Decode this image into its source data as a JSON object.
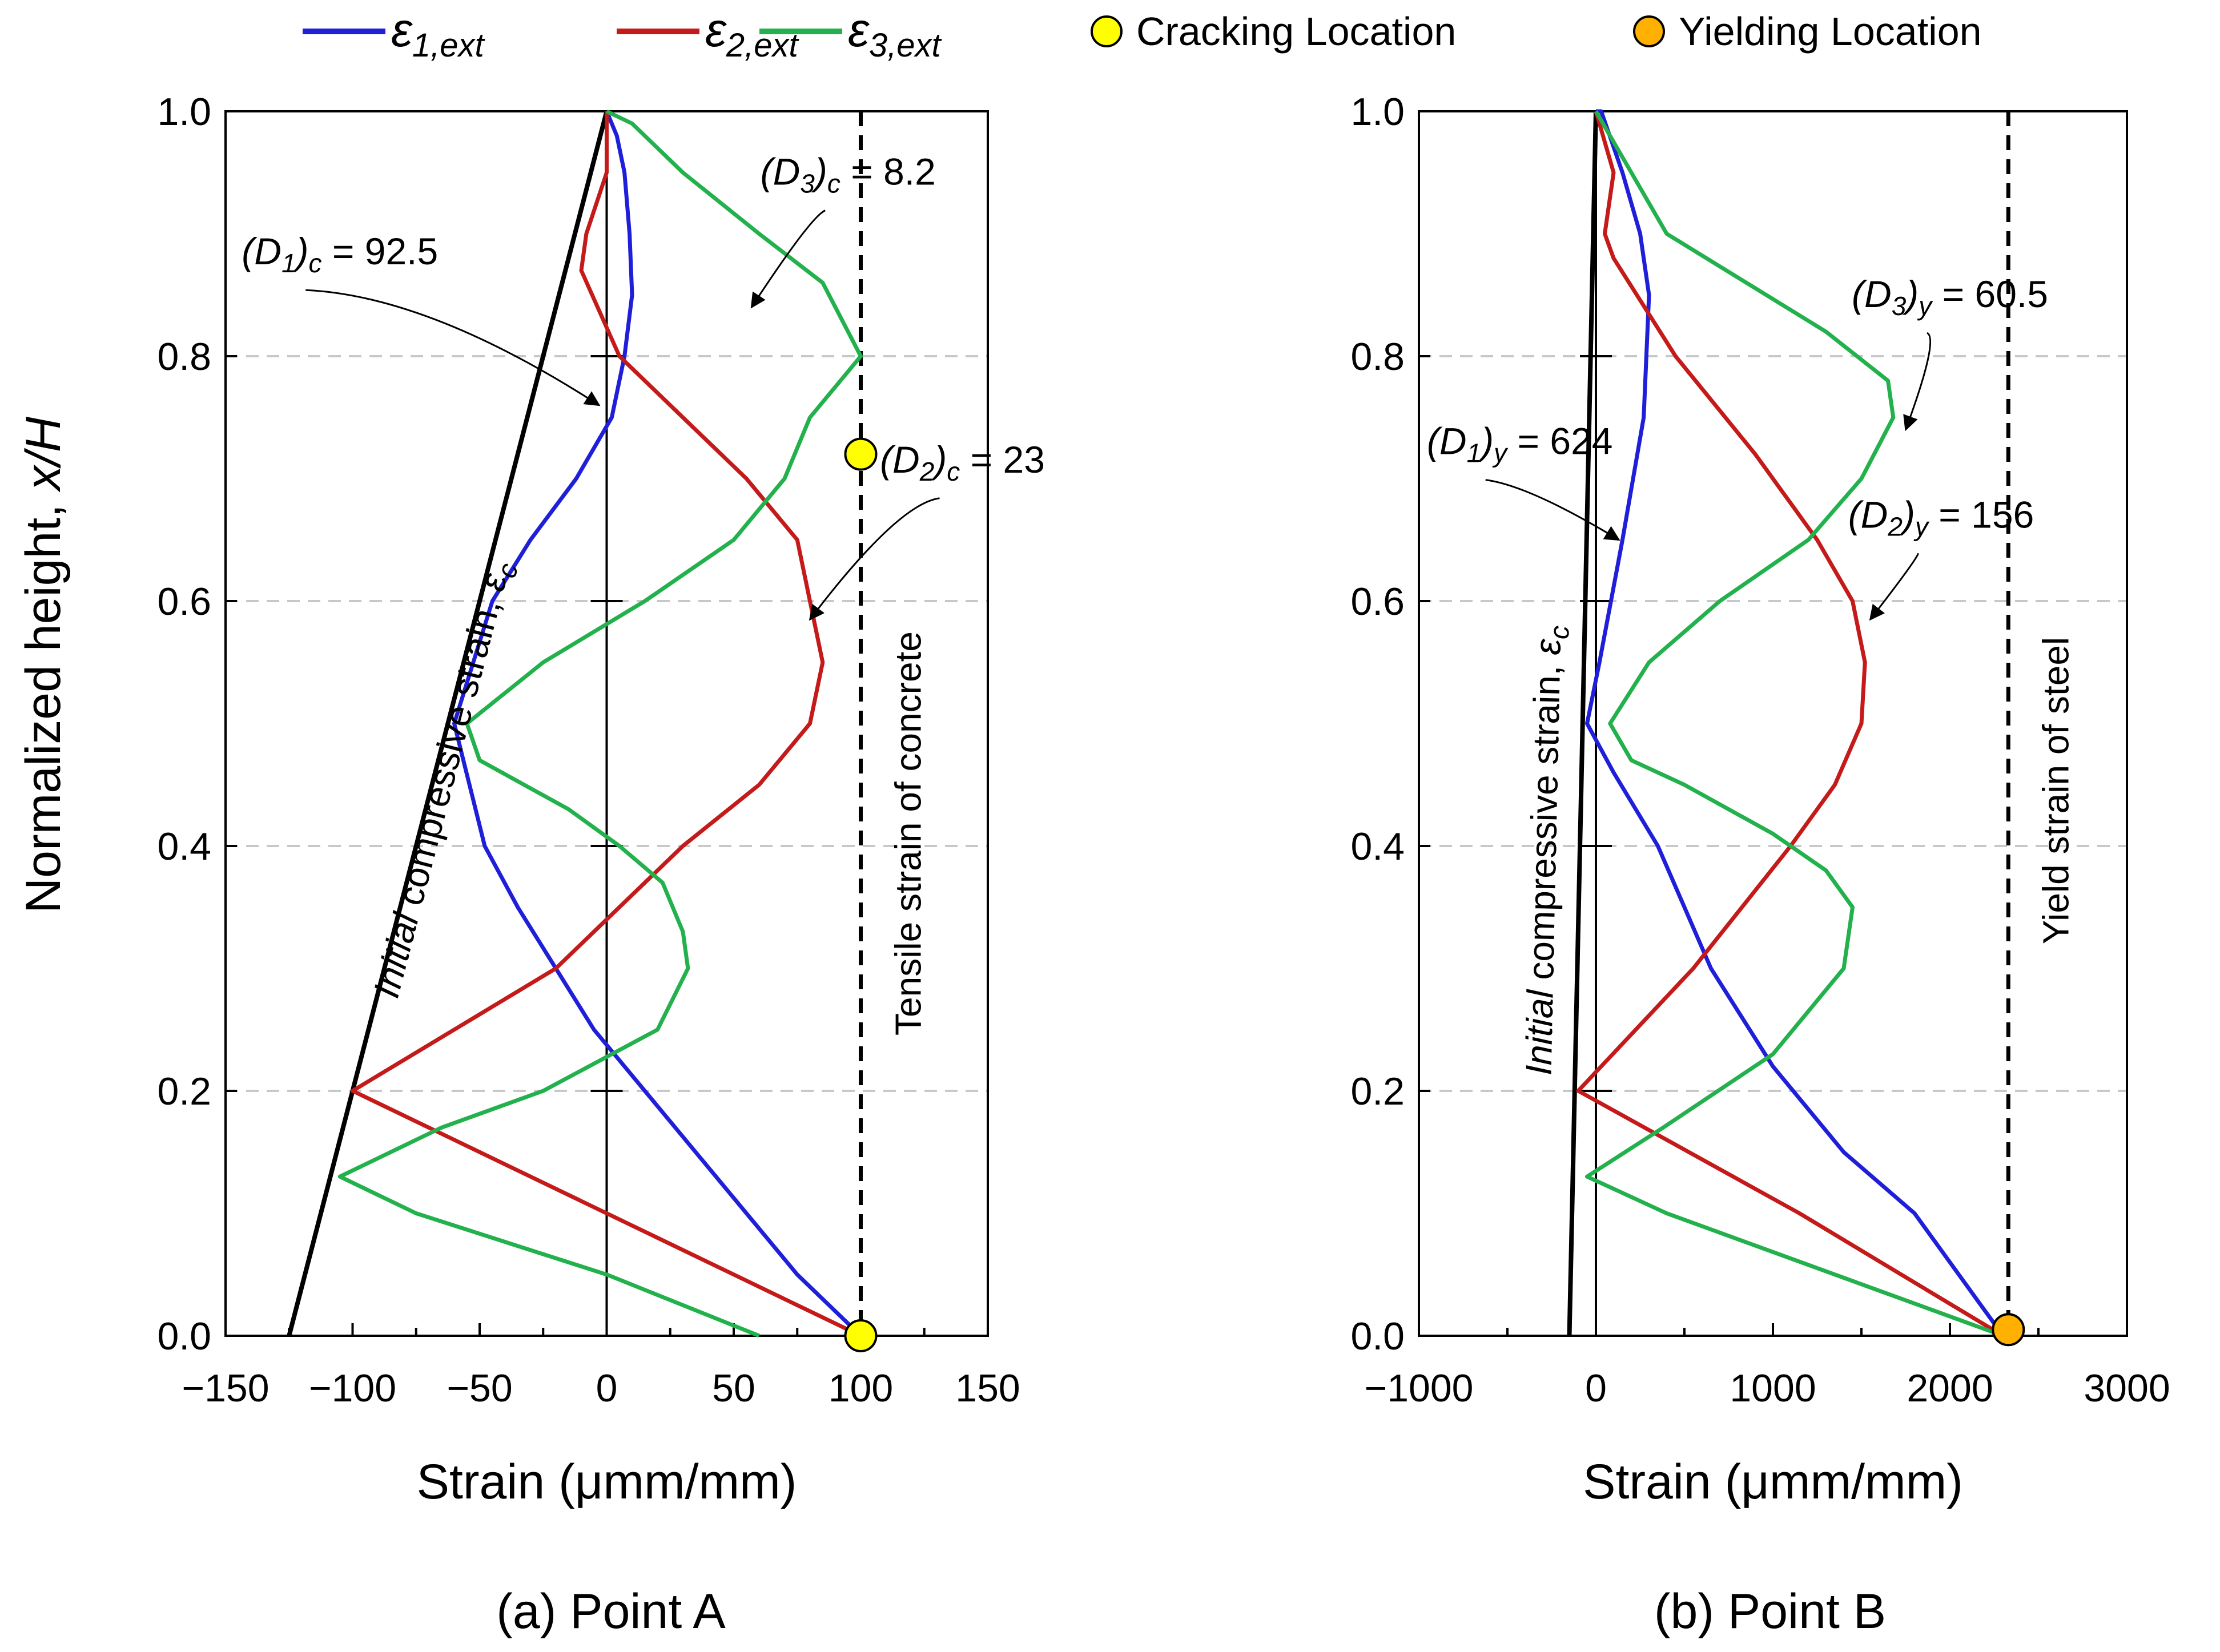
{
  "legend": {
    "items": [
      {
        "kind": "line",
        "base": "ε",
        "sub": "1,ext",
        "color": "#1f1fd9"
      },
      {
        "kind": "line",
        "base": "ε",
        "sub": "2,ext",
        "color": "#c41a1a"
      },
      {
        "kind": "line",
        "base": "ε",
        "sub": "3,ext",
        "color": "#22b14c"
      },
      {
        "kind": "marker",
        "label": "Cracking Location",
        "color": "#ffff00"
      },
      {
        "kind": "marker",
        "label": "Yielding Location",
        "color": "#ffb000"
      }
    ]
  },
  "y_axis_label": {
    "main": "Normalized height, ",
    "var": "x/H"
  },
  "colors": {
    "eps1": "#1f1fd9",
    "eps2": "#c41a1a",
    "eps3": "#22b14c",
    "initial": "#000000",
    "crack": "#ffff00",
    "yield": "#ffb000"
  },
  "chart_data": [
    {
      "type": "line",
      "caption": "(a) Point A",
      "xlabel": "Strain (μmm/mm)",
      "xlim": [
        -150,
        150
      ],
      "ylim": [
        0,
        1
      ],
      "xticks": [
        -150,
        -100,
        -50,
        0,
        50,
        100,
        150
      ],
      "xtick_labels": [
        "−150",
        "−100",
        "−50",
        "0",
        "50",
        "100",
        "150"
      ],
      "yticks": [
        0,
        0.2,
        0.4,
        0.6,
        0.8,
        1.0
      ],
      "ytick_labels": [
        "0.0",
        "0.2",
        "0.4",
        "0.6",
        "0.8",
        "1.0"
      ],
      "limit_line": {
        "x": 100,
        "label": "Tensile strain of concrete"
      },
      "initial_label": {
        "text": "Initial compressive strain, ",
        "sym": "ε",
        "sub": "c"
      },
      "series": [
        {
          "name": "initial",
          "x": [
            -125,
            0
          ],
          "y": [
            0,
            1.0
          ]
        },
        {
          "name": "eps1",
          "x": [
            100,
            75,
            55,
            35,
            15,
            -5,
            -20,
            -35,
            -48,
            -60,
            -45,
            -30,
            -12,
            2,
            7,
            10,
            9,
            7,
            4,
            0
          ],
          "y": [
            0,
            0.05,
            0.1,
            0.15,
            0.2,
            0.25,
            0.3,
            0.35,
            0.4,
            0.5,
            0.6,
            0.65,
            0.7,
            0.75,
            0.8,
            0.85,
            0.9,
            0.95,
            0.98,
            1.0
          ]
        },
        {
          "name": "eps2",
          "x": [
            100,
            0,
            -100,
            -20,
            30,
            60,
            80,
            85,
            80,
            75,
            55,
            30,
            5,
            -10,
            -8,
            0,
            0
          ],
          "y": [
            0,
            0.1,
            0.2,
            0.3,
            0.4,
            0.45,
            0.5,
            0.55,
            0.6,
            0.65,
            0.7,
            0.75,
            0.8,
            0.87,
            0.9,
            0.95,
            1.0
          ]
        },
        {
          "name": "eps3",
          "x": [
            60,
            0,
            -75,
            -105,
            -65,
            -25,
            20,
            32,
            30,
            22,
            5,
            -15,
            -50,
            -55,
            -25,
            15,
            50,
            70,
            80,
            100,
            85,
            60,
            30,
            10,
            0
          ],
          "y": [
            0,
            0.05,
            0.1,
            0.13,
            0.17,
            0.2,
            0.25,
            0.3,
            0.33,
            0.37,
            0.4,
            0.43,
            0.47,
            0.5,
            0.55,
            0.6,
            0.65,
            0.7,
            0.75,
            0.8,
            0.86,
            0.9,
            0.95,
            0.99,
            1.0
          ]
        }
      ],
      "markers": [
        {
          "x": 100,
          "y": 0.72,
          "kind": "crack"
        },
        {
          "x": 100,
          "y": 0.0,
          "kind": "crack"
        }
      ],
      "annotations": [
        {
          "label": "D",
          "sub": "1",
          "tail": "c",
          "value": " = 92.5",
          "anchor_x": -105,
          "anchor_y": 0.875,
          "arrow_x": -3,
          "arrow_y": 0.76
        },
        {
          "label": "D",
          "sub": "3",
          "tail": "c",
          "value": " = 8.2",
          "anchor_x": 95,
          "anchor_y": 0.94,
          "arrow_x": 57,
          "arrow_y": 0.84
        },
        {
          "label": "D",
          "sub": "2",
          "tail": "c",
          "value": " = 23",
          "anchor_x": 140,
          "anchor_y": 0.705,
          "arrow_x": 80,
          "arrow_y": 0.585
        }
      ]
    },
    {
      "type": "line",
      "caption": "(b) Point B",
      "xlabel": "Strain (μmm/mm)",
      "xlim": [
        -1000,
        3000
      ],
      "ylim": [
        0,
        1
      ],
      "xticks": [
        -1000,
        0,
        1000,
        2000,
        3000
      ],
      "xtick_labels": [
        "−1000",
        "0",
        "1000",
        "2000",
        "3000"
      ],
      "yticks": [
        0,
        0.2,
        0.4,
        0.6,
        0.8,
        1.0
      ],
      "ytick_labels": [
        "0.0",
        "0.2",
        "0.4",
        "0.6",
        "0.8",
        "1.0"
      ],
      "limit_line": {
        "x": 2330,
        "label": "Yield strain of steel"
      },
      "initial_label": {
        "text": "Initial compressive strain, ",
        "sym": "ε",
        "sub": "c"
      },
      "series": [
        {
          "name": "initial",
          "x": [
            -150,
            0
          ],
          "y": [
            0,
            1.0
          ]
        },
        {
          "name": "eps1",
          "x": [
            2300,
            1800,
            1400,
            1000,
            650,
            350,
            100,
            -50,
            20,
            150,
            270,
            300,
            250,
            150,
            30,
            0
          ],
          "y": [
            0,
            0.1,
            0.15,
            0.22,
            0.3,
            0.4,
            0.46,
            0.5,
            0.55,
            0.65,
            0.75,
            0.85,
            0.9,
            0.95,
            1.0,
            1.0
          ]
        },
        {
          "name": "eps2",
          "x": [
            2300,
            1150,
            -100,
            550,
            1100,
            1350,
            1500,
            1520,
            1450,
            1250,
            900,
            450,
            100,
            50,
            100,
            0
          ],
          "y": [
            0,
            0.1,
            0.2,
            0.3,
            0.4,
            0.45,
            0.5,
            0.55,
            0.6,
            0.65,
            0.72,
            0.8,
            0.88,
            0.9,
            0.95,
            1.0
          ]
        },
        {
          "name": "eps3",
          "x": [
            2300,
            400,
            -50,
            380,
            1000,
            1400,
            1450,
            1300,
            1000,
            500,
            200,
            80,
            300,
            700,
            1200,
            1500,
            1680,
            1650,
            1300,
            400,
            0
          ],
          "y": [
            0,
            0.1,
            0.13,
            0.17,
            0.23,
            0.3,
            0.35,
            0.38,
            0.41,
            0.45,
            0.47,
            0.5,
            0.55,
            0.6,
            0.65,
            0.7,
            0.75,
            0.78,
            0.82,
            0.9,
            1.0
          ]
        }
      ],
      "markers": [
        {
          "x": 2330,
          "y": 0.005,
          "kind": "yield"
        }
      ],
      "annotations": [
        {
          "label": "D",
          "sub": "1",
          "tail": "y",
          "value": " = 624",
          "anchor_x": -430,
          "anchor_y": 0.72,
          "arrow_x": 130,
          "arrow_y": 0.65
        },
        {
          "label": "D",
          "sub": "3",
          "tail": "y",
          "value": " = 60.5",
          "anchor_x": 2000,
          "anchor_y": 0.84,
          "arrow_x": 1750,
          "arrow_y": 0.74
        },
        {
          "label": "D",
          "sub": "2",
          "tail": "y",
          "value": " = 156",
          "anchor_x": 1950,
          "anchor_y": 0.66,
          "arrow_x": 1550,
          "arrow_y": 0.585
        }
      ]
    }
  ]
}
